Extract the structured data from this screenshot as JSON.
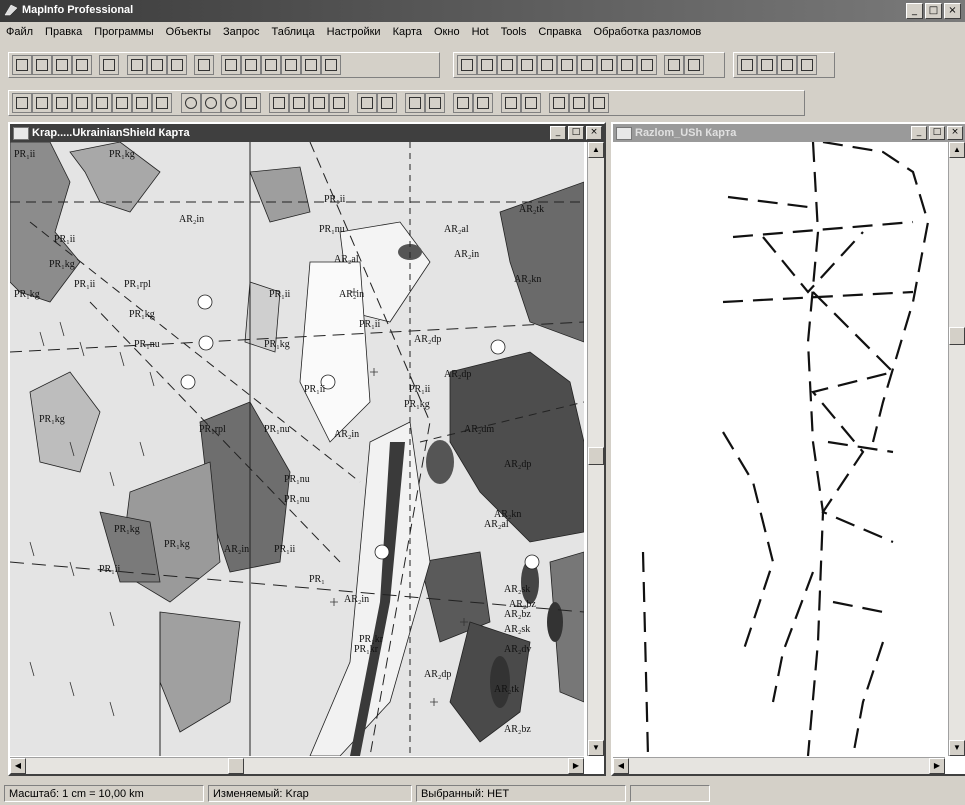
{
  "app": {
    "title": "MapInfo Professional"
  },
  "menu": [
    "Файл",
    "Правка",
    "Программы",
    "Объекты",
    "Запрос",
    "Таблица",
    "Настройки",
    "Карта",
    "Окно",
    "Hot",
    "Tools",
    "Справка",
    "Обработка разломов"
  ],
  "windows": {
    "left": {
      "title": "Krap.....UkrainianShield Карта"
    },
    "right": {
      "title": "Razlom_USh Карта"
    }
  },
  "map_labels": [
    "PR₁ii",
    "PR₁kg",
    "AR₂in",
    "PR₁ii",
    "PR₁kg",
    "PR₁ii",
    "PR₁kg",
    "PR₁rpl",
    "PR₁ii",
    "PR₁kg",
    "PR₁nu",
    "PR₁kg",
    "PR₁kg",
    "PR₁rpl",
    "PR₁nu",
    "PR₁ii",
    "AR₂in",
    "PR₁nu",
    "PR₁kg",
    "PR₁nu",
    "PR₁ii",
    "PR₁kg",
    "AR₂in",
    "PR₁ii",
    "PR₁",
    "AR₂in",
    "PR₁kr",
    "AR₂al",
    "AR₂in",
    "PR₁ii",
    "PR₁nu",
    "AR₂al",
    "AR₂in",
    "PR₁ii",
    "AR₂dp",
    "AR₂dp",
    "PR₁ii",
    "PR₁kg",
    "AR₂dm",
    "AR₂dp",
    "AR₂kn",
    "AR₂sk",
    "AR₂bz",
    "AR₂dv",
    "AR₂tk",
    "AR₂bz",
    "AR₂dp",
    "AR₂al",
    "AR₂tk",
    "AR₂kn",
    "PR₁kr",
    "AR₂sk",
    "AR₂bz"
  ],
  "status": {
    "scale": "Масштаб: 1 cm = 10,00 km",
    "editable": "Изменяемый: Krap",
    "selected": "Выбранный: НЕТ"
  },
  "colors": {
    "active_title": "#3f3f3f",
    "inactive_title": "#9a9a9a",
    "face": "#d4d0c8"
  }
}
